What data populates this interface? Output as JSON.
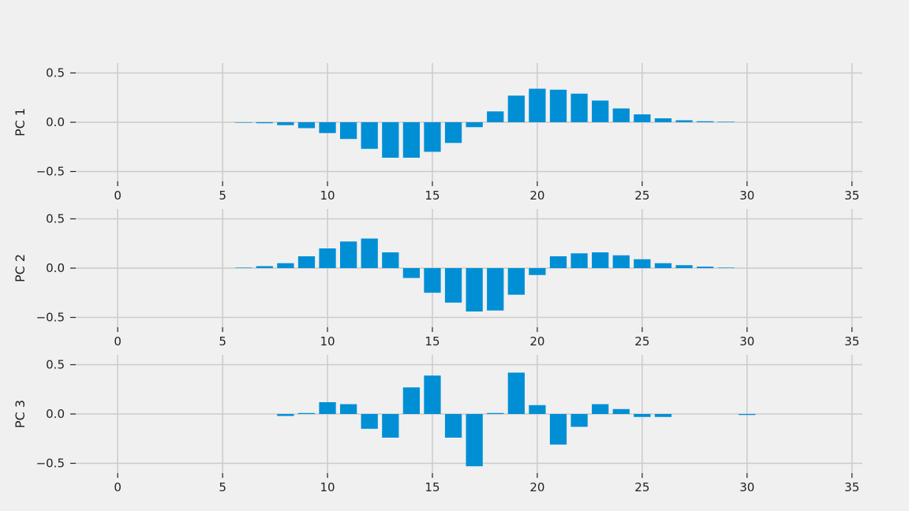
{
  "chart_data": [
    {
      "type": "bar",
      "ylabel": "PC 1",
      "xlim": [
        -2,
        35.5
      ],
      "ylim": [
        -0.6,
        0.6
      ],
      "xticks": [
        0,
        5,
        10,
        15,
        20,
        25,
        30,
        35
      ],
      "yticks": [
        -0.5,
        0.0,
        0.5
      ],
      "ytick_labels": [
        "−0.5",
        "0.0",
        "0.5"
      ],
      "bar_color": "#008fd5",
      "x": [
        6,
        7,
        8,
        9,
        10,
        11,
        12,
        13,
        14,
        15,
        16,
        17,
        18,
        19,
        20,
        21,
        22,
        23,
        24,
        25,
        26,
        27,
        28,
        29
      ],
      "values": [
        0.0,
        -0.01,
        -0.03,
        -0.06,
        -0.11,
        -0.17,
        -0.27,
        -0.36,
        -0.36,
        -0.3,
        -0.21,
        -0.05,
        0.11,
        0.27,
        0.34,
        0.33,
        0.29,
        0.22,
        0.14,
        0.08,
        0.04,
        0.02,
        0.01,
        0.005
      ]
    },
    {
      "type": "bar",
      "ylabel": "PC 2",
      "xlim": [
        -2,
        35.5
      ],
      "ylim": [
        -0.6,
        0.6
      ],
      "xticks": [
        0,
        5,
        10,
        15,
        20,
        25,
        30,
        35
      ],
      "yticks": [
        -0.5,
        0.0,
        0.5
      ],
      "ytick_labels": [
        "−0.5",
        "0.0",
        "0.5"
      ],
      "bar_color": "#008fd5",
      "x": [
        6,
        7,
        8,
        9,
        10,
        11,
        12,
        13,
        14,
        15,
        16,
        17,
        18,
        19,
        20,
        21,
        22,
        23,
        24,
        25,
        26,
        27,
        28,
        29
      ],
      "values": [
        0.005,
        0.02,
        0.05,
        0.12,
        0.2,
        0.27,
        0.3,
        0.16,
        -0.1,
        -0.25,
        -0.35,
        -0.44,
        -0.43,
        -0.27,
        -0.07,
        0.12,
        0.15,
        0.16,
        0.13,
        0.09,
        0.05,
        0.03,
        0.015,
        0.005
      ]
    },
    {
      "type": "bar",
      "ylabel": "PC 3",
      "xlim": [
        -2,
        35.5
      ],
      "ylim": [
        -0.6,
        0.6
      ],
      "xticks": [
        0,
        5,
        10,
        15,
        20,
        25,
        30,
        35
      ],
      "yticks": [
        -0.5,
        0.0,
        0.5
      ],
      "ytick_labels": [
        "−0.5",
        "0.0",
        "0.5"
      ],
      "bar_color": "#008fd5",
      "x": [
        8,
        9,
        10,
        11,
        12,
        13,
        14,
        15,
        16,
        17,
        18,
        19,
        20,
        21,
        22,
        23,
        24,
        25,
        26,
        30
      ],
      "values": [
        -0.02,
        0.01,
        0.12,
        0.1,
        -0.15,
        -0.24,
        0.27,
        0.39,
        -0.24,
        -0.53,
        0.01,
        0.42,
        0.09,
        -0.31,
        -0.13,
        0.1,
        0.05,
        -0.03,
        -0.03,
        -0.01
      ]
    }
  ]
}
